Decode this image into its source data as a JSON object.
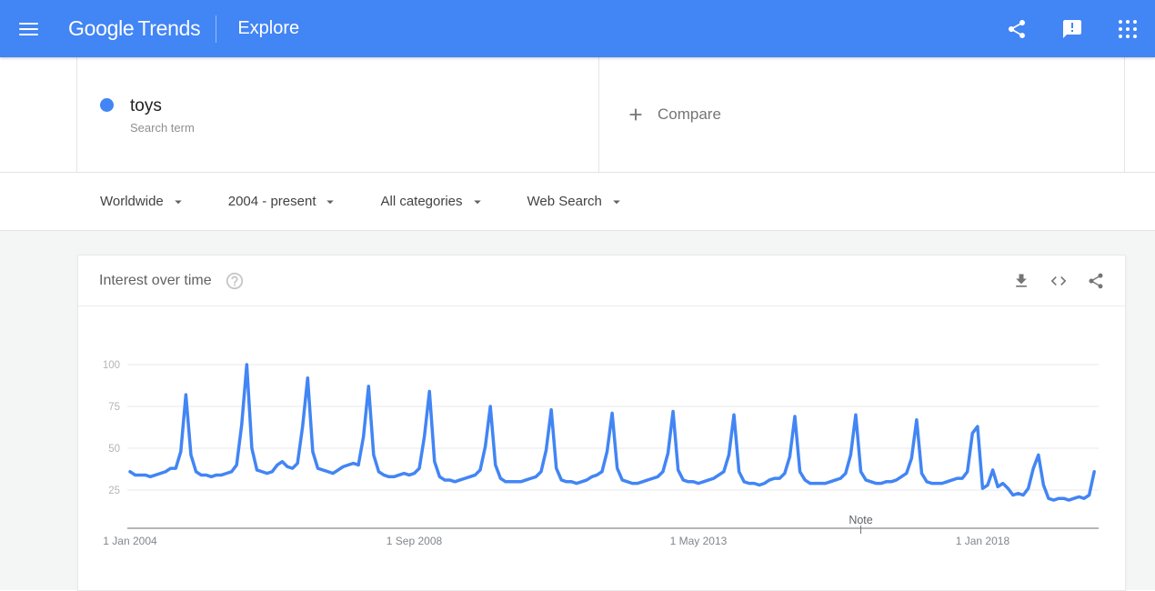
{
  "header": {
    "brand_primary": "Google",
    "brand_secondary": "Trends",
    "page_title": "Explore",
    "icons": [
      "menu-icon",
      "share-icon",
      "feedback-icon",
      "apps-grid-icon"
    ]
  },
  "terms": {
    "term_label": "toys",
    "term_sublabel": "Search term",
    "term_dot_color": "#4285f4",
    "compare_label": "Compare"
  },
  "filters": [
    {
      "label": "Worldwide"
    },
    {
      "label": "2004 - present"
    },
    {
      "label": "All categories"
    },
    {
      "label": "Web Search"
    }
  ],
  "chart_card": {
    "title": "Interest over time",
    "action_icons": [
      "download-icon",
      "embed-icon",
      "share-icon"
    ]
  },
  "colors": {
    "header_bg": "#4285f4",
    "accent_blue": "#4285f4",
    "page_bg": "#f4f5f5",
    "grid_line": "#e8e8e8",
    "axis_line": "#8a8a8a"
  },
  "chart_data": {
    "type": "line",
    "title": "Interest over time",
    "series_name": "toys",
    "x_start": "2004-01",
    "x_step": "1 month",
    "x_end": "2019-11",
    "ylim": [
      0,
      100
    ],
    "yticks": [
      25,
      50,
      75,
      100
    ],
    "grid": true,
    "legend": "none",
    "line_color": "#4285f4",
    "xtick_labels": [
      {
        "label": "1 Jan 2004",
        "month_index": 0
      },
      {
        "label": "1 Sep 2008",
        "month_index": 56
      },
      {
        "label": "1 May 2013",
        "month_index": 112
      },
      {
        "label": "1 Jan 2018",
        "month_index": 168
      }
    ],
    "note": {
      "label": "Note",
      "month_index": 144
    },
    "values": [
      36,
      34,
      34,
      34,
      33,
      34,
      35,
      36,
      38,
      38,
      48,
      82,
      46,
      36,
      34,
      34,
      33,
      34,
      34,
      35,
      36,
      40,
      64,
      100,
      50,
      37,
      36,
      35,
      36,
      40,
      42,
      39,
      38,
      41,
      63,
      92,
      48,
      38,
      37,
      36,
      35,
      37,
      39,
      40,
      41,
      40,
      57,
      87,
      46,
      36,
      34,
      33,
      33,
      34,
      35,
      34,
      35,
      38,
      57,
      84,
      42,
      33,
      31,
      31,
      30,
      31,
      32,
      33,
      34,
      37,
      51,
      75,
      40,
      32,
      30,
      30,
      30,
      30,
      31,
      32,
      33,
      36,
      49,
      73,
      38,
      31,
      30,
      30,
      29,
      30,
      31,
      33,
      34,
      36,
      48,
      71,
      38,
      31,
      30,
      29,
      29,
      30,
      31,
      32,
      33,
      36,
      47,
      72,
      37,
      31,
      30,
      30,
      29,
      30,
      31,
      32,
      34,
      36,
      46,
      70,
      36,
      30,
      29,
      29,
      28,
      29,
      31,
      32,
      32,
      35,
      45,
      69,
      36,
      31,
      29,
      29,
      29,
      29,
      30,
      31,
      32,
      35,
      46,
      70,
      36,
      31,
      30,
      29,
      29,
      30,
      30,
      31,
      33,
      35,
      44,
      67,
      35,
      30,
      29,
      29,
      29,
      30,
      31,
      32,
      32,
      36,
      59,
      63,
      26,
      28,
      37,
      27,
      29,
      26,
      22,
      23,
      22,
      26,
      38,
      46,
      28,
      20,
      19,
      20,
      20,
      19,
      20,
      21,
      20,
      22,
      36
    ]
  }
}
